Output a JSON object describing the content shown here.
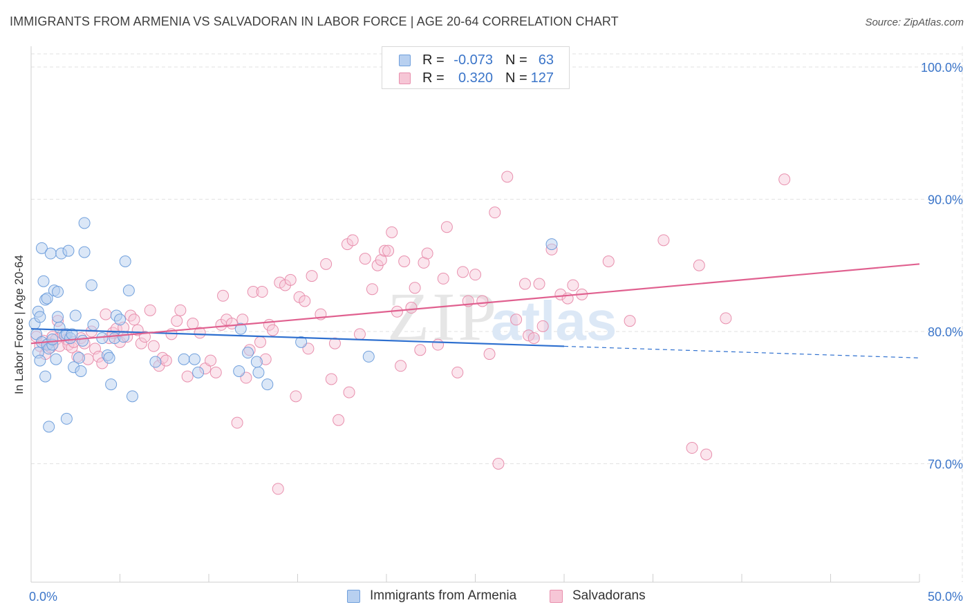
{
  "header": {
    "title": "IMMIGRANTS FROM ARMENIA VS SALVADORAN IN LABOR FORCE | AGE 20-64 CORRELATION CHART",
    "source": "Source: ZipAtlas.com"
  },
  "watermark": {
    "zip": "ZIP",
    "atlas": "atlas"
  },
  "legend_top": [
    {
      "r_label": "R =",
      "r_value": "-0.073",
      "n_label": "N =",
      "n_value": "63"
    },
    {
      "r_label": "R =",
      "r_value": "0.320",
      "n_label": "N =",
      "n_value": "127"
    }
  ],
  "legend_bottom": [
    {
      "label": "Immigrants from Armenia"
    },
    {
      "label": "Salvadorans"
    }
  ],
  "colors": {
    "blue_fill": "#b8d0f0",
    "blue_stroke": "#6f9fdc",
    "blue_line": "#2d6fcf",
    "pink_fill": "#f6c6d6",
    "pink_stroke": "#e88fad",
    "pink_line": "#e0608f",
    "axis_label": "#3b75c9",
    "grid": "#e2e2e2"
  },
  "chart_data": {
    "type": "scatter",
    "title": "IMMIGRANTS FROM ARMENIA VS SALVADORAN IN LABOR FORCE | AGE 20-64 CORRELATION CHART",
    "xlabel": "",
    "ylabel": "In Labor Force | Age 20-64",
    "xlim": [
      0,
      50
    ],
    "ylim": [
      61.5,
      101
    ],
    "x_tick_labels": [
      "0.0%",
      "50.0%"
    ],
    "y_ticks": [
      70,
      80,
      90,
      100
    ],
    "y_tick_labels": [
      "70.0%",
      "80.0%",
      "90.0%",
      "100.0%"
    ],
    "grid": true,
    "legend_position": "top-center",
    "series": [
      {
        "name": "Immigrants from Armenia",
        "trend": {
          "x_start": 0,
          "y_start": 80.2,
          "x_solid_end": 30,
          "x_end": 50,
          "y_end": 78.0
        },
        "points": [
          [
            0.2,
            80.6
          ],
          [
            0.3,
            79.8
          ],
          [
            0.4,
            78.4
          ],
          [
            0.4,
            81.5
          ],
          [
            0.5,
            81.1
          ],
          [
            0.5,
            77.8
          ],
          [
            0.6,
            79.2
          ],
          [
            0.6,
            86.3
          ],
          [
            0.7,
            83.8
          ],
          [
            0.8,
            82.4
          ],
          [
            0.8,
            76.6
          ],
          [
            0.9,
            82.5
          ],
          [
            0.9,
            79.0
          ],
          [
            1.0,
            78.7
          ],
          [
            1.0,
            72.8
          ],
          [
            1.1,
            85.9
          ],
          [
            1.2,
            79.0
          ],
          [
            1.2,
            79.4
          ],
          [
            1.3,
            83.1
          ],
          [
            1.4,
            77.9
          ],
          [
            1.5,
            81.1
          ],
          [
            1.5,
            83.0
          ],
          [
            1.6,
            80.3
          ],
          [
            1.7,
            85.9
          ],
          [
            1.9,
            79.7
          ],
          [
            2.0,
            79.8
          ],
          [
            2.0,
            73.4
          ],
          [
            2.1,
            86.1
          ],
          [
            2.2,
            79.5
          ],
          [
            2.3,
            79.8
          ],
          [
            2.4,
            77.3
          ],
          [
            2.5,
            81.2
          ],
          [
            2.7,
            78.0
          ],
          [
            2.8,
            77.0
          ],
          [
            2.9,
            79.3
          ],
          [
            3.0,
            88.2
          ],
          [
            3.0,
            86.0
          ],
          [
            3.4,
            83.5
          ],
          [
            3.5,
            80.5
          ],
          [
            4.0,
            79.5
          ],
          [
            4.3,
            78.2
          ],
          [
            4.4,
            78.0
          ],
          [
            4.5,
            76.0
          ],
          [
            4.7,
            79.5
          ],
          [
            4.8,
            81.2
          ],
          [
            5.0,
            80.9
          ],
          [
            5.2,
            79.6
          ],
          [
            5.3,
            85.3
          ],
          [
            5.5,
            83.1
          ],
          [
            5.7,
            75.1
          ],
          [
            7.0,
            77.7
          ],
          [
            8.6,
            77.9
          ],
          [
            9.2,
            77.9
          ],
          [
            9.4,
            76.9
          ],
          [
            11.7,
            77.0
          ],
          [
            11.8,
            80.2
          ],
          [
            12.2,
            78.4
          ],
          [
            12.7,
            77.7
          ],
          [
            12.8,
            76.9
          ],
          [
            13.3,
            76.0
          ],
          [
            15.2,
            79.2
          ],
          [
            19.0,
            78.1
          ],
          [
            29.3,
            86.6
          ]
        ]
      },
      {
        "name": "Salvadorans",
        "trend": {
          "x_start": 0,
          "y_start": 79.1,
          "x_end": 50,
          "y_end": 85.1
        },
        "points": [
          [
            0.3,
            79.6
          ],
          [
            0.5,
            78.9
          ],
          [
            0.7,
            79.3
          ],
          [
            0.8,
            78.3
          ],
          [
            1.0,
            79.1
          ],
          [
            1.1,
            78.8
          ],
          [
            1.2,
            79.6
          ],
          [
            1.4,
            79.4
          ],
          [
            1.6,
            78.9
          ],
          [
            1.8,
            79.8
          ],
          [
            2.0,
            79.4
          ],
          [
            2.1,
            79.0
          ],
          [
            2.3,
            78.8
          ],
          [
            2.4,
            79.2
          ],
          [
            2.6,
            78.1
          ],
          [
            2.8,
            79.5
          ],
          [
            3.0,
            79.1
          ],
          [
            3.2,
            77.9
          ],
          [
            3.4,
            80.0
          ],
          [
            3.6,
            78.7
          ],
          [
            3.8,
            78.1
          ],
          [
            4.0,
            77.6
          ],
          [
            4.2,
            81.3
          ],
          [
            4.4,
            79.5
          ],
          [
            4.6,
            79.9
          ],
          [
            4.8,
            80.2
          ],
          [
            5.0,
            79.2
          ],
          [
            5.2,
            80.3
          ],
          [
            5.4,
            79.6
          ],
          [
            5.6,
            81.2
          ],
          [
            5.8,
            80.9
          ],
          [
            6.0,
            80.1
          ],
          [
            6.2,
            79.1
          ],
          [
            6.4,
            79.6
          ],
          [
            6.7,
            81.6
          ],
          [
            6.9,
            78.9
          ],
          [
            7.2,
            77.4
          ],
          [
            7.4,
            78.0
          ],
          [
            7.6,
            77.8
          ],
          [
            7.9,
            79.8
          ],
          [
            8.2,
            80.8
          ],
          [
            8.4,
            81.6
          ],
          [
            8.8,
            76.6
          ],
          [
            9.1,
            80.6
          ],
          [
            9.5,
            79.9
          ],
          [
            9.8,
            77.2
          ],
          [
            10.1,
            77.8
          ],
          [
            10.4,
            76.9
          ],
          [
            10.7,
            80.5
          ],
          [
            10.8,
            82.7
          ],
          [
            11.0,
            80.9
          ],
          [
            11.3,
            80.6
          ],
          [
            11.6,
            73.1
          ],
          [
            11.9,
            80.9
          ],
          [
            12.1,
            76.5
          ],
          [
            12.3,
            78.6
          ],
          [
            12.5,
            83.0
          ],
          [
            12.9,
            79.2
          ],
          [
            13.0,
            83.0
          ],
          [
            13.2,
            77.9
          ],
          [
            13.4,
            80.5
          ],
          [
            13.6,
            80.1
          ],
          [
            13.9,
            68.1
          ],
          [
            14.0,
            83.7
          ],
          [
            14.3,
            83.5
          ],
          [
            14.6,
            83.9
          ],
          [
            14.9,
            75.1
          ],
          [
            15.1,
            82.6
          ],
          [
            15.4,
            82.3
          ],
          [
            15.6,
            78.7
          ],
          [
            15.8,
            84.2
          ],
          [
            16.3,
            81.3
          ],
          [
            16.6,
            85.1
          ],
          [
            16.9,
            76.4
          ],
          [
            17.1,
            79.1
          ],
          [
            17.3,
            73.3
          ],
          [
            17.8,
            86.6
          ],
          [
            17.9,
            75.4
          ],
          [
            18.1,
            86.9
          ],
          [
            18.5,
            79.8
          ],
          [
            18.8,
            85.5
          ],
          [
            19.2,
            83.2
          ],
          [
            19.5,
            85.0
          ],
          [
            19.7,
            85.4
          ],
          [
            19.9,
            86.1
          ],
          [
            20.1,
            86.1
          ],
          [
            20.3,
            87.5
          ],
          [
            20.6,
            81.5
          ],
          [
            20.8,
            77.4
          ],
          [
            21.0,
            85.3
          ],
          [
            21.4,
            81.8
          ],
          [
            21.6,
            83.3
          ],
          [
            21.9,
            78.6
          ],
          [
            22.1,
            85.2
          ],
          [
            22.3,
            85.9
          ],
          [
            22.9,
            79.0
          ],
          [
            23.2,
            84.0
          ],
          [
            23.4,
            87.9
          ],
          [
            24.0,
            76.9
          ],
          [
            24.3,
            84.5
          ],
          [
            24.6,
            82.3
          ],
          [
            25.0,
            84.3
          ],
          [
            25.4,
            82.3
          ],
          [
            25.8,
            78.3
          ],
          [
            26.1,
            89.0
          ],
          [
            26.3,
            70.0
          ],
          [
            26.8,
            91.7
          ],
          [
            27.3,
            80.9
          ],
          [
            27.8,
            83.6
          ],
          [
            28.0,
            79.7
          ],
          [
            28.3,
            79.5
          ],
          [
            28.6,
            83.6
          ],
          [
            28.8,
            80.4
          ],
          [
            29.3,
            86.2
          ],
          [
            29.8,
            82.8
          ],
          [
            30.2,
            82.5
          ],
          [
            30.5,
            83.5
          ],
          [
            31.0,
            82.8
          ],
          [
            32.5,
            85.3
          ],
          [
            33.7,
            80.8
          ],
          [
            35.6,
            86.9
          ],
          [
            37.2,
            71.2
          ],
          [
            37.6,
            85.0
          ],
          [
            38.0,
            70.7
          ],
          [
            39.1,
            81.0
          ],
          [
            42.4,
            91.5
          ],
          [
            1.5,
            80.8
          ]
        ]
      }
    ]
  }
}
